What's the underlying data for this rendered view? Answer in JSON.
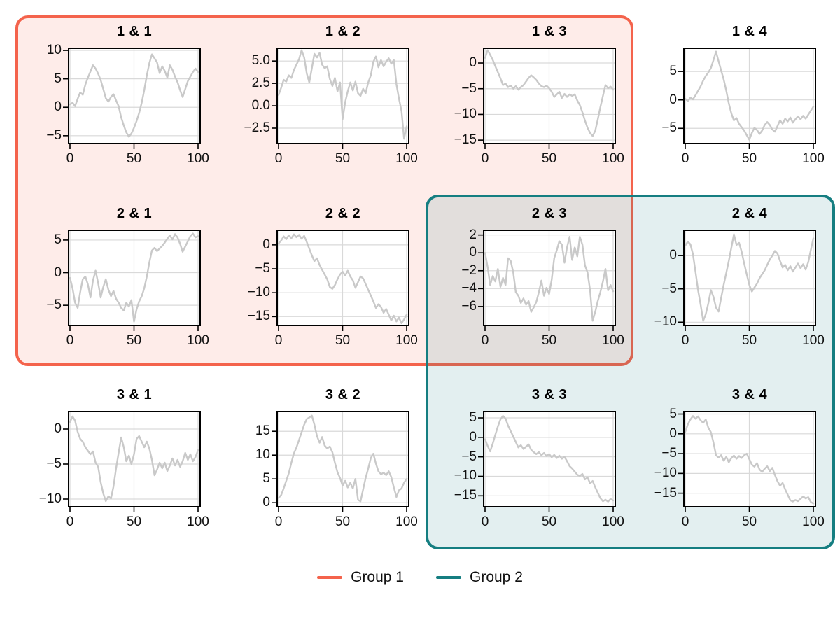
{
  "figure": {
    "background": "#FFFFFF",
    "axis_color": "#000000",
    "grid_color": "#D9D9D9"
  },
  "groups": [
    {
      "label": "Group 1",
      "color": "#F4634C",
      "fill": "rgba(244,99,76,0.12)",
      "encloses": [
        "1 & 1",
        "1 & 2",
        "1 & 3",
        "2 & 1",
        "2 & 2",
        "2 & 3"
      ]
    },
    {
      "label": "Group 2",
      "color": "#157E81",
      "fill": "rgba(21,126,129,0.12)",
      "encloses": [
        "2 & 3",
        "2 & 4",
        "3 & 3",
        "3 & 4"
      ]
    }
  ],
  "legend": {
    "position": "bottom-center"
  },
  "chart_data": {
    "type": "line",
    "layout": "3 rows x 4 columns",
    "line_color": "#C9C9C9",
    "grid": true,
    "xlim": [
      0,
      100
    ],
    "x_ticks": [
      0,
      50,
      100
    ],
    "x_tick_labels": [
      "0",
      "50",
      "100"
    ],
    "x": [
      0,
      2,
      4,
      6,
      8,
      10,
      12,
      14,
      16,
      18,
      20,
      22,
      24,
      26,
      28,
      30,
      32,
      34,
      36,
      38,
      40,
      42,
      44,
      46,
      48,
      50,
      52,
      54,
      56,
      58,
      60,
      62,
      64,
      66,
      68,
      70,
      72,
      74,
      76,
      78,
      80,
      82,
      84,
      86,
      88,
      90,
      92,
      94,
      96,
      98,
      100
    ],
    "plots": [
      {
        "title": "1 & 1",
        "row": 1,
        "col": 1,
        "in_groups": [
          "Group 1"
        ],
        "y_ticks": [
          10,
          5,
          0,
          -5
        ],
        "y_tick_labels": [
          "10",
          "5",
          "0",
          "−5"
        ],
        "ylim": [
          -6.5,
          10.5
        ],
        "y": [
          0.5,
          0.8,
          0.2,
          1.5,
          2.6,
          2.2,
          4.0,
          5.2,
          6.3,
          7.4,
          6.8,
          5.9,
          4.8,
          3.2,
          1.6,
          1.0,
          1.8,
          2.3,
          1.2,
          0.2,
          -1.8,
          -3.2,
          -4.4,
          -5.2,
          -4.6,
          -3.6,
          -2.4,
          -1.0,
          0.8,
          3.0,
          5.6,
          7.8,
          9.3,
          8.6,
          7.9,
          6.0,
          7.2,
          6.4,
          5.2,
          7.4,
          6.6,
          5.4,
          4.4,
          3.0,
          1.8,
          3.2,
          4.6,
          5.4,
          6.2,
          6.8,
          6.2
        ]
      },
      {
        "title": "1 & 2",
        "row": 1,
        "col": 2,
        "in_groups": [
          "Group 1"
        ],
        "y_ticks": [
          5.0,
          2.5,
          0.0,
          -2.5
        ],
        "y_tick_labels": [
          "5.0",
          "2.5",
          "0.0",
          "−2.5"
        ],
        "ylim": [
          -4.3,
          6.5
        ],
        "y": [
          1.2,
          2.0,
          2.9,
          2.7,
          3.4,
          3.1,
          4.0,
          4.6,
          5.2,
          6.2,
          5.4,
          3.6,
          2.6,
          4.2,
          5.8,
          5.4,
          5.9,
          4.6,
          4.2,
          4.4,
          3.0,
          2.2,
          3.1,
          1.6,
          2.6,
          -1.5,
          0.4,
          1.6,
          2.6,
          1.7,
          2.7,
          1.4,
          1.1,
          1.9,
          1.4,
          2.6,
          3.4,
          4.9,
          5.5,
          4.3,
          5.1,
          4.4,
          4.9,
          5.3,
          4.7,
          5.1,
          2.4,
          0.8,
          -0.6,
          -3.7,
          -2.3
        ]
      },
      {
        "title": "1 & 3",
        "row": 1,
        "col": 3,
        "in_groups": [
          "Group 1"
        ],
        "y_ticks": [
          0,
          -5,
          -10,
          -15
        ],
        "y_tick_labels": [
          "0",
          "−5",
          "−10",
          "−15"
        ],
        "ylim": [
          -15.8,
          3.0
        ],
        "y": [
          1.0,
          2.5,
          1.6,
          0.6,
          -0.6,
          -1.8,
          -3.0,
          -4.3,
          -4.0,
          -4.7,
          -4.4,
          -5.0,
          -4.5,
          -5.2,
          -4.7,
          -4.3,
          -3.6,
          -2.9,
          -2.4,
          -2.8,
          -3.3,
          -4.0,
          -4.5,
          -4.7,
          -4.4,
          -4.9,
          -5.6,
          -6.6,
          -6.1,
          -5.6,
          -6.8,
          -6.0,
          -6.6,
          -6.1,
          -6.4,
          -6.1,
          -7.3,
          -8.2,
          -9.6,
          -11.2,
          -12.6,
          -13.6,
          -14.2,
          -13.2,
          -11.0,
          -8.6,
          -6.4,
          -4.3,
          -4.9,
          -4.6,
          -5.2
        ]
      },
      {
        "title": "1 & 4",
        "row": 1,
        "col": 4,
        "in_groups": [],
        "y_ticks": [
          5,
          0,
          -5
        ],
        "y_tick_labels": [
          "5",
          "0",
          "−5"
        ],
        "ylim": [
          -7.8,
          9.2
        ],
        "y": [
          0.2,
          -0.2,
          0.4,
          0.1,
          0.8,
          1.6,
          2.4,
          3.4,
          4.2,
          4.8,
          5.6,
          7.0,
          8.5,
          6.8,
          5.2,
          3.6,
          1.6,
          -0.6,
          -2.4,
          -3.6,
          -3.2,
          -4.2,
          -4.8,
          -5.4,
          -6.2,
          -7.0,
          -5.8,
          -4.9,
          -5.3,
          -6.0,
          -5.4,
          -4.4,
          -3.9,
          -4.4,
          -5.2,
          -5.6,
          -4.6,
          -3.6,
          -4.2,
          -3.3,
          -3.8,
          -3.1,
          -4.0,
          -3.4,
          -2.9,
          -3.4,
          -2.8,
          -3.3,
          -2.6,
          -1.9,
          -1.2
        ]
      },
      {
        "title": "2 & 1",
        "row": 2,
        "col": 1,
        "in_groups": [
          "Group 1"
        ],
        "y_ticks": [
          5,
          0,
          -5
        ],
        "y_tick_labels": [
          "5",
          "0",
          "−5"
        ],
        "ylim": [
          -8.2,
          6.6
        ],
        "y": [
          -0.8,
          -2.4,
          -4.6,
          -5.4,
          -3.0,
          -1.0,
          -0.6,
          -1.8,
          -3.8,
          -1.2,
          0.3,
          -1.6,
          -3.8,
          -2.2,
          -1.0,
          -2.6,
          -3.6,
          -2.8,
          -4.0,
          -4.6,
          -5.4,
          -5.8,
          -4.6,
          -5.2,
          -4.2,
          -7.5,
          -5.6,
          -4.4,
          -3.6,
          -2.4,
          -0.6,
          1.6,
          3.4,
          3.8,
          3.3,
          3.7,
          4.1,
          4.6,
          5.2,
          5.7,
          5.1,
          5.9,
          5.4,
          4.4,
          3.2,
          4.0,
          4.8,
          5.6,
          6.0,
          5.4,
          5.6
        ]
      },
      {
        "title": "2 & 2",
        "row": 2,
        "col": 2,
        "in_groups": [
          "Group 1"
        ],
        "y_ticks": [
          0,
          -5,
          -10,
          -15
        ],
        "y_tick_labels": [
          "0",
          "−5",
          "−10",
          "−15"
        ],
        "ylim": [
          -17.0,
          3.2
        ],
        "y": [
          0.3,
          0.9,
          1.8,
          1.2,
          2.0,
          1.4,
          2.2,
          1.6,
          2.1,
          1.3,
          1.9,
          0.6,
          -0.8,
          -2.2,
          -3.4,
          -2.8,
          -4.2,
          -5.2,
          -6.2,
          -7.2,
          -8.8,
          -9.2,
          -8.4,
          -7.2,
          -6.2,
          -5.6,
          -6.4,
          -5.4,
          -6.6,
          -7.4,
          -9.0,
          -7.8,
          -6.6,
          -7.0,
          -8.2,
          -9.4,
          -10.6,
          -11.8,
          -13.2,
          -12.4,
          -13.0,
          -14.2,
          -13.4,
          -14.6,
          -15.8,
          -14.8,
          -16.0,
          -15.2,
          -16.4,
          -15.6,
          -14.6
        ]
      },
      {
        "title": "2 & 3",
        "row": 2,
        "col": 3,
        "in_groups": [
          "Group 1",
          "Group 2"
        ],
        "y_ticks": [
          2,
          0,
          -2,
          -4,
          -6
        ],
        "y_tick_labels": [
          "2",
          "0",
          "−2",
          "−4",
          "−6"
        ],
        "ylim": [
          -8.2,
          2.6
        ],
        "y": [
          0.0,
          -1.6,
          -3.6,
          -2.6,
          -3.2,
          -1.8,
          -3.8,
          -2.8,
          -3.6,
          -0.6,
          -0.9,
          -2.2,
          -4.4,
          -4.8,
          -5.6,
          -5.1,
          -5.8,
          -5.4,
          -6.6,
          -6.1,
          -5.5,
          -4.4,
          -3.1,
          -4.8,
          -3.9,
          -4.6,
          -3.0,
          -0.6,
          0.3,
          1.3,
          0.9,
          -1.1,
          0.6,
          1.8,
          -0.8,
          0.6,
          -0.4,
          1.8,
          0.9,
          -1.4,
          -2.2,
          -4.2,
          -7.6,
          -6.6,
          -5.4,
          -4.4,
          -3.2,
          -1.8,
          -4.2,
          -3.6,
          -4.3
        ]
      },
      {
        "title": "2 & 4",
        "row": 2,
        "col": 4,
        "in_groups": [
          "Group 2"
        ],
        "y_ticks": [
          0,
          -5,
          -10
        ],
        "y_tick_labels": [
          "0",
          "−5",
          "−10"
        ],
        "ylim": [
          -10.6,
          3.9
        ],
        "y": [
          1.5,
          2.1,
          1.7,
          0.2,
          -2.4,
          -5.2,
          -7.4,
          -9.8,
          -8.8,
          -7.2,
          -5.2,
          -6.2,
          -7.8,
          -8.4,
          -6.4,
          -4.4,
          -2.6,
          -0.8,
          1.2,
          3.2,
          1.6,
          1.9,
          0.6,
          -1.2,
          -2.8,
          -4.4,
          -5.4,
          -4.8,
          -4.2,
          -3.4,
          -2.8,
          -2.2,
          -1.4,
          -0.6,
          0.0,
          0.7,
          0.3,
          -0.8,
          -1.8,
          -1.4,
          -2.2,
          -1.6,
          -2.4,
          -1.8,
          -1.2,
          -1.9,
          -1.3,
          -2.1,
          -1.0,
          0.8,
          2.6
        ]
      },
      {
        "title": "3 & 1",
        "row": 3,
        "col": 1,
        "in_groups": [],
        "y_ticks": [
          0,
          -5,
          -10
        ],
        "y_tick_labels": [
          "0",
          "−5",
          "−10"
        ],
        "ylim": [
          -11.2,
          2.6
        ],
        "y": [
          1.0,
          1.8,
          1.2,
          -0.4,
          -1.4,
          -1.8,
          -2.6,
          -3.1,
          -3.6,
          -3.2,
          -4.8,
          -5.4,
          -7.6,
          -9.2,
          -10.3,
          -9.6,
          -9.9,
          -8.2,
          -5.6,
          -3.4,
          -1.2,
          -2.6,
          -4.6,
          -3.8,
          -5.0,
          -3.6,
          -1.4,
          -1.0,
          -1.8,
          -2.6,
          -1.8,
          -2.8,
          -4.4,
          -6.6,
          -5.8,
          -4.8,
          -5.6,
          -4.8,
          -6.0,
          -5.2,
          -4.2,
          -5.2,
          -4.4,
          -5.4,
          -4.6,
          -3.4,
          -4.4,
          -3.6,
          -4.6,
          -4.0,
          -3.0
        ]
      },
      {
        "title": "3 & 2",
        "row": 3,
        "col": 2,
        "in_groups": [],
        "y_ticks": [
          15,
          10,
          5,
          0
        ],
        "y_tick_labels": [
          "15",
          "10",
          "5",
          "0"
        ],
        "ylim": [
          -1.0,
          19.3
        ],
        "y": [
          1.0,
          1.6,
          3.0,
          4.6,
          6.2,
          8.4,
          10.4,
          11.6,
          13.2,
          14.8,
          16.4,
          17.6,
          17.9,
          18.3,
          16.4,
          14.0,
          12.6,
          13.8,
          12.0,
          11.4,
          11.8,
          10.6,
          8.4,
          6.4,
          5.2,
          3.6,
          4.6,
          3.2,
          4.2,
          3.0,
          5.0,
          0.6,
          0.3,
          2.8,
          5.2,
          7.2,
          9.4,
          10.3,
          8.2,
          6.6,
          6.0,
          6.3,
          5.8,
          6.6,
          5.4,
          3.2,
          1.2,
          2.6,
          3.0,
          4.2,
          5.0
        ]
      },
      {
        "title": "3 & 3",
        "row": 3,
        "col": 3,
        "in_groups": [
          "Group 2"
        ],
        "y_ticks": [
          5,
          0,
          -5,
          -10,
          -15
        ],
        "y_tick_labels": [
          "5",
          "0",
          "−5",
          "−10",
          "−15"
        ],
        "ylim": [
          -18.0,
          6.8
        ],
        "y": [
          -0.5,
          -2.2,
          -3.6,
          -1.6,
          0.6,
          2.8,
          4.6,
          5.5,
          4.8,
          3.0,
          1.6,
          0.2,
          -1.2,
          -2.6,
          -2.0,
          -3.0,
          -2.4,
          -1.8,
          -3.2,
          -3.8,
          -4.3,
          -3.8,
          -4.6,
          -4.0,
          -4.8,
          -4.3,
          -5.1,
          -4.5,
          -5.3,
          -4.7,
          -5.5,
          -5.0,
          -6.1,
          -7.4,
          -8.0,
          -8.8,
          -9.6,
          -9.9,
          -9.4,
          -10.8,
          -10.3,
          -11.8,
          -11.2,
          -12.8,
          -14.2,
          -15.6,
          -16.4,
          -16.0,
          -16.5,
          -15.8,
          -16.2
        ]
      },
      {
        "title": "3 & 4",
        "row": 3,
        "col": 4,
        "in_groups": [
          "Group 2"
        ],
        "y_ticks": [
          5,
          0,
          -5,
          -10,
          -15
        ],
        "y_tick_labels": [
          "5",
          "0",
          "−5",
          "−10",
          "−15"
        ],
        "ylim": [
          -18.6,
          5.8
        ],
        "y": [
          0.5,
          2.4,
          3.6,
          4.5,
          3.8,
          4.4,
          3.4,
          2.8,
          3.6,
          1.6,
          0.4,
          -2.2,
          -5.4,
          -6.0,
          -5.4,
          -6.8,
          -5.8,
          -7.2,
          -6.1,
          -5.5,
          -6.3,
          -5.6,
          -6.1,
          -5.4,
          -5.0,
          -6.4,
          -7.8,
          -8.3,
          -7.4,
          -9.0,
          -9.6,
          -8.8,
          -8.2,
          -9.4,
          -8.6,
          -10.4,
          -12.0,
          -13.1,
          -12.4,
          -14.0,
          -15.4,
          -16.8,
          -17.1,
          -16.7,
          -17.0,
          -16.4,
          -15.8,
          -16.3,
          -16.0,
          -17.2,
          -17.6
        ]
      }
    ]
  }
}
